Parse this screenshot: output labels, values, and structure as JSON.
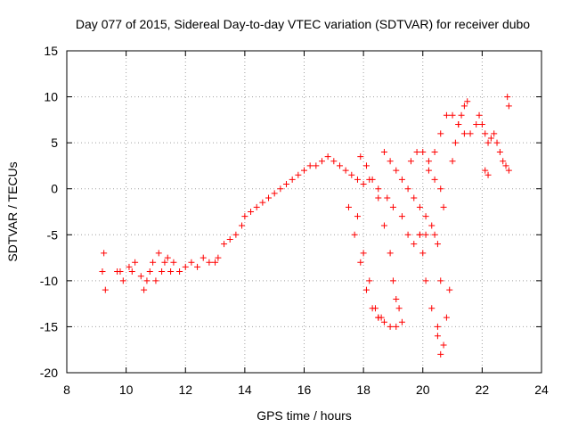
{
  "chart_data": {
    "type": "scatter",
    "title": "Day 077 of 2015, Sidereal Day-to-day VTEC variation (SDTVAR) for receiver dubo",
    "xlabel": "GPS time / hours",
    "ylabel": "SDTVAR / TECUs",
    "xlim": [
      8,
      24
    ],
    "ylim": [
      -20,
      15
    ],
    "xticks": [
      8,
      10,
      12,
      14,
      16,
      18,
      20,
      22,
      24
    ],
    "yticks": [
      -20,
      -15,
      -10,
      -5,
      0,
      5,
      10,
      15
    ],
    "grid": true,
    "marker": "+",
    "color": "#ff0000",
    "series": [
      {
        "name": "SDTVAR",
        "x": [
          9.2,
          9.3,
          9.25,
          9.7,
          9.8,
          9.9,
          10.1,
          10.2,
          10.3,
          10.5,
          10.6,
          10.7,
          10.8,
          10.9,
          11.0,
          11.1,
          11.2,
          11.3,
          11.4,
          11.5,
          11.6,
          11.8,
          12.0,
          12.2,
          12.4,
          12.6,
          12.8,
          13.0,
          13.1,
          13.3,
          13.5,
          13.7,
          13.9,
          14.0,
          14.2,
          14.4,
          14.6,
          14.8,
          15.0,
          15.2,
          15.4,
          15.6,
          15.8,
          16.0,
          16.2,
          16.4,
          16.6,
          16.8,
          17.0,
          17.2,
          17.4,
          17.6,
          17.8,
          18.0,
          17.5,
          17.7,
          17.9,
          18.1,
          18.3,
          18.5,
          18.7,
          18.9,
          19.1,
          19.3,
          17.8,
          18.0,
          18.2,
          18.4,
          18.5,
          18.6,
          17.9,
          18.1,
          18.3,
          18.5,
          18.7,
          18.9,
          19.0,
          19.1,
          19.2,
          18.2,
          18.5,
          18.8,
          19.0,
          19.3,
          19.5,
          19.7,
          19.9,
          20.1,
          18.7,
          18.9,
          19.1,
          19.3,
          19.5,
          19.7,
          19.9,
          20.1,
          20.3,
          20.4,
          20.5,
          19.6,
          19.8,
          20.0,
          20.2,
          20.4,
          20.6,
          20.7,
          20.6,
          20.5,
          19.9,
          20.0,
          20.1,
          20.3,
          20.5,
          20.6,
          20.7,
          20.8,
          20.9,
          20.2,
          20.4,
          20.6,
          20.8,
          21.0,
          21.2,
          21.4,
          21.6,
          21.8,
          21.0,
          21.1,
          21.2,
          21.3,
          21.4,
          21.5,
          21.9,
          22.0,
          22.1,
          22.2,
          22.3,
          22.4,
          22.5,
          22.6,
          22.7,
          22.8,
          22.9,
          22.85,
          22.9,
          22.1,
          22.2
        ],
        "y": [
          -9,
          -11,
          -7,
          -9,
          -9,
          -10,
          -8.5,
          -9,
          -8,
          -9.5,
          -11,
          -10,
          -9,
          -8,
          -10,
          -7,
          -9,
          -8,
          -7.5,
          -9,
          -8,
          -9,
          -8.5,
          -8,
          -8.5,
          -7.5,
          -8,
          -8,
          -7.5,
          -6,
          -5.5,
          -5,
          -4,
          -3,
          -2.5,
          -2,
          -1.5,
          -1,
          -0.5,
          0,
          0.5,
          1,
          1.5,
          2,
          2.5,
          2.5,
          3,
          3.5,
          3,
          2.5,
          2,
          1.5,
          1,
          0.5,
          -2,
          -5,
          -8,
          -11,
          -13,
          -14,
          -14.5,
          -15,
          -15,
          -14.5,
          -3,
          -7,
          -10,
          -13,
          -14,
          -14,
          3.5,
          2.5,
          1,
          -1,
          -4,
          -7,
          -10,
          -12,
          -13,
          1,
          0,
          -1,
          -2,
          -3,
          -5,
          -6,
          -5,
          -5,
          4,
          3,
          2,
          1,
          0,
          -1,
          -2,
          -3,
          -4,
          -5,
          -6,
          3,
          4,
          4,
          3,
          1,
          0,
          -2,
          -10,
          -15,
          -5,
          -7,
          -10,
          -13,
          -16,
          -18,
          -17,
          -14,
          -11,
          2,
          4,
          6,
          8,
          8,
          7,
          6,
          6,
          7,
          3,
          5,
          7,
          8,
          9,
          9.5,
          8,
          7,
          6,
          5,
          5.5,
          6,
          5,
          4,
          3,
          2.5,
          2,
          10,
          9,
          2,
          1.5
        ]
      }
    ]
  }
}
